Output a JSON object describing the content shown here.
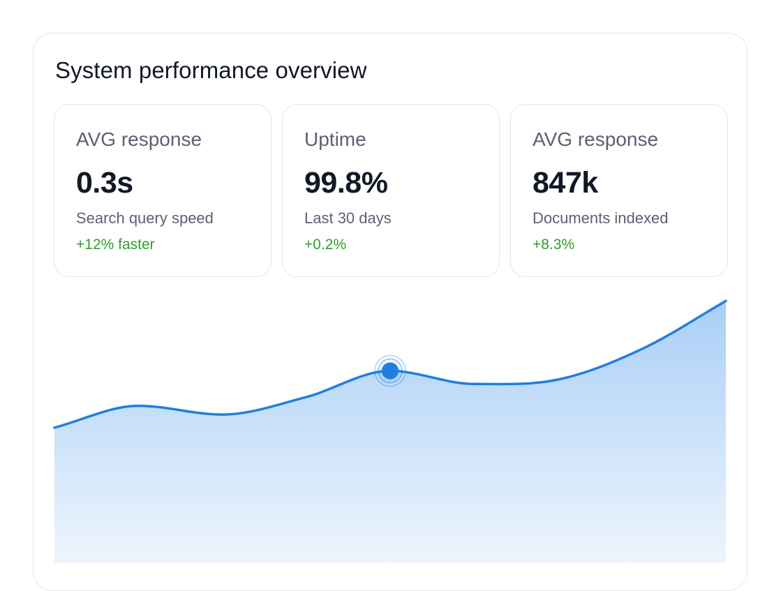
{
  "panel": {
    "title": "System performance overview"
  },
  "stats": [
    {
      "label": "AVG response",
      "value": "0.3s",
      "description": "Search query speed",
      "change": "+12% faster"
    },
    {
      "label": "Uptime",
      "value": "99.8%",
      "description": "Last 30 days",
      "change": "+0.2%"
    },
    {
      "label": "AVG response",
      "value": "847k",
      "description": "Documents indexed",
      "change": "+8.3%"
    }
  ],
  "colors": {
    "accent": "#1e7fe0",
    "positive": "#2e9e2a",
    "area_top": "#a9cff6",
    "area_bottom": "#eef5fd"
  },
  "chart_data": {
    "type": "area",
    "title": "",
    "xlabel": "",
    "ylabel": "",
    "x": [
      0,
      1,
      2,
      3,
      4,
      5,
      6,
      7,
      8
    ],
    "values": [
      3.1,
      3.6,
      3.4,
      3.8,
      4.4,
      4.1,
      4.2,
      4.9,
      6.0
    ],
    "ylim": [
      0,
      6.5
    ],
    "highlight_index": 4,
    "grid": false,
    "legend": "none"
  }
}
